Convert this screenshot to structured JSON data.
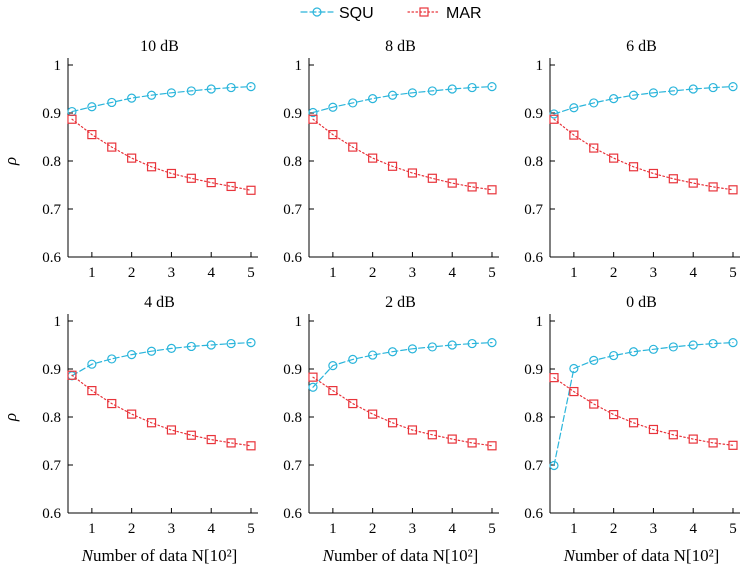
{
  "legend": {
    "position": "top-center",
    "entries": [
      {
        "name": "SQU",
        "color": "#2bb5db",
        "marker": "circle",
        "dash": "dashed"
      },
      {
        "name": "MAR",
        "color": "#e8343b",
        "marker": "square",
        "dash": "dotted"
      }
    ]
  },
  "chart_data": [
    {
      "type": "line",
      "title": "10 dB",
      "x": [
        0.5,
        1,
        1.5,
        2,
        2.5,
        3,
        3.5,
        4,
        4.5,
        5
      ],
      "series": [
        {
          "name": "SQU",
          "values": [
            0.903,
            0.913,
            0.922,
            0.931,
            0.937,
            0.942,
            0.946,
            0.95,
            0.953,
            0.955
          ]
        },
        {
          "name": "MAR",
          "values": [
            0.887,
            0.855,
            0.829,
            0.806,
            0.788,
            0.774,
            0.764,
            0.755,
            0.747,
            0.739
          ]
        }
      ],
      "xlabel": "",
      "ylabel": "ρ",
      "xlim": [
        0.4,
        5
      ],
      "ylim": [
        0.6,
        1
      ],
      "xticks": [
        1,
        2,
        3,
        4,
        5
      ],
      "yticks": [
        0.6,
        0.7,
        0.8,
        0.9,
        1
      ]
    },
    {
      "type": "line",
      "title": "8 dB",
      "x": [
        0.5,
        1,
        1.5,
        2,
        2.5,
        3,
        3.5,
        4,
        4.5,
        5
      ],
      "series": [
        {
          "name": "SQU",
          "values": [
            0.901,
            0.912,
            0.921,
            0.93,
            0.937,
            0.942,
            0.946,
            0.95,
            0.953,
            0.955
          ]
        },
        {
          "name": "MAR",
          "values": [
            0.887,
            0.855,
            0.829,
            0.806,
            0.789,
            0.775,
            0.764,
            0.754,
            0.746,
            0.74
          ]
        }
      ],
      "xlabel": "",
      "ylabel": "",
      "xlim": [
        0.4,
        5
      ],
      "ylim": [
        0.6,
        1
      ],
      "xticks": [
        1,
        2,
        3,
        4,
        5
      ],
      "yticks": [
        0.6,
        0.7,
        0.8,
        0.9,
        1
      ]
    },
    {
      "type": "line",
      "title": "6 dB",
      "x": [
        0.5,
        1,
        1.5,
        2,
        2.5,
        3,
        3.5,
        4,
        4.5,
        5
      ],
      "series": [
        {
          "name": "SQU",
          "values": [
            0.898,
            0.911,
            0.921,
            0.93,
            0.937,
            0.942,
            0.946,
            0.95,
            0.953,
            0.955
          ]
        },
        {
          "name": "MAR",
          "values": [
            0.887,
            0.854,
            0.827,
            0.806,
            0.788,
            0.774,
            0.763,
            0.754,
            0.746,
            0.74
          ]
        }
      ],
      "xlabel": "",
      "ylabel": "",
      "xlim": [
        0.4,
        5
      ],
      "ylim": [
        0.6,
        1
      ],
      "xticks": [
        1,
        2,
        3,
        4,
        5
      ],
      "yticks": [
        0.6,
        0.7,
        0.8,
        0.9,
        1
      ]
    },
    {
      "type": "line",
      "title": "4 dB",
      "x": [
        0.5,
        1,
        1.5,
        2,
        2.5,
        3,
        3.5,
        4,
        4.5,
        5
      ],
      "series": [
        {
          "name": "SQU",
          "values": [
            0.886,
            0.91,
            0.921,
            0.93,
            0.937,
            0.943,
            0.947,
            0.95,
            0.953,
            0.955
          ]
        },
        {
          "name": "MAR",
          "values": [
            0.887,
            0.855,
            0.828,
            0.806,
            0.788,
            0.773,
            0.762,
            0.753,
            0.746,
            0.74
          ]
        }
      ],
      "xlabel": "Number of data N[10²]",
      "ylabel": "ρ",
      "xlim": [
        0.4,
        5
      ],
      "ylim": [
        0.6,
        1
      ],
      "xticks": [
        1,
        2,
        3,
        4,
        5
      ],
      "yticks": [
        0.6,
        0.7,
        0.8,
        0.9,
        1
      ]
    },
    {
      "type": "line",
      "title": "2 dB",
      "x": [
        0.5,
        1,
        1.5,
        2,
        2.5,
        3,
        3.5,
        4,
        4.5,
        5
      ],
      "series": [
        {
          "name": "SQU",
          "values": [
            0.862,
            0.907,
            0.92,
            0.929,
            0.936,
            0.942,
            0.946,
            0.95,
            0.953,
            0.955
          ]
        },
        {
          "name": "MAR",
          "values": [
            0.883,
            0.855,
            0.828,
            0.806,
            0.788,
            0.773,
            0.763,
            0.754,
            0.746,
            0.74
          ]
        }
      ],
      "xlabel": "Number of data N[10²]",
      "ylabel": "",
      "xlim": [
        0.4,
        5
      ],
      "ylim": [
        0.6,
        1
      ],
      "xticks": [
        1,
        2,
        3,
        4,
        5
      ],
      "yticks": [
        0.6,
        0.7,
        0.8,
        0.9,
        1
      ]
    },
    {
      "type": "line",
      "title": "0 dB",
      "x": [
        0.5,
        1,
        1.5,
        2,
        2.5,
        3,
        3.5,
        4,
        4.5,
        5
      ],
      "series": [
        {
          "name": "SQU",
          "values": [
            0.699,
            0.901,
            0.918,
            0.928,
            0.936,
            0.941,
            0.946,
            0.95,
            0.953,
            0.955
          ]
        },
        {
          "name": "MAR",
          "values": [
            0.882,
            0.853,
            0.827,
            0.805,
            0.788,
            0.774,
            0.763,
            0.754,
            0.746,
            0.741
          ]
        }
      ],
      "xlabel": "Number of data N[10²]",
      "ylabel": "",
      "xlim": [
        0.4,
        5
      ],
      "ylim": [
        0.6,
        1
      ],
      "xticks": [
        1,
        2,
        3,
        4,
        5
      ],
      "yticks": [
        0.6,
        0.7,
        0.8,
        0.9,
        1
      ]
    }
  ]
}
